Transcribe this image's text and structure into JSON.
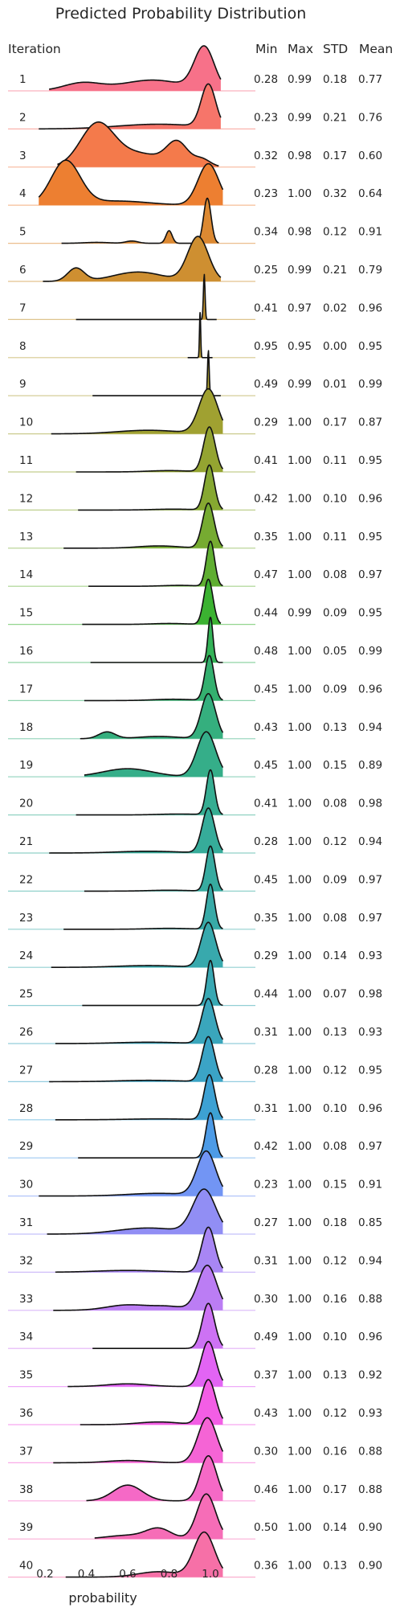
{
  "chart_data": {
    "type": "area",
    "title": "Predicted Probability Distribution",
    "xlabel": "probability",
    "xticks": [
      "0.2",
      "0.4",
      "0.6",
      "0.8",
      "1.0"
    ],
    "xlim": [
      0.05,
      1.25
    ],
    "columns": {
      "iteration": "Iteration",
      "min": "Min",
      "max": "Max",
      "std": "STD",
      "mean": "Mean"
    },
    "rows": [
      {
        "iteration": "1",
        "min": "0.28",
        "max": "0.99",
        "std": "0.18",
        "mean": "0.77",
        "color": "#f77189"
      },
      {
        "iteration": "2",
        "min": "0.23",
        "max": "0.99",
        "std": "0.21",
        "mean": "0.76",
        "color": "#f6756a"
      },
      {
        "iteration": "3",
        "min": "0.32",
        "max": "0.98",
        "std": "0.17",
        "mean": "0.60",
        "color": "#f47a4b"
      },
      {
        "iteration": "4",
        "min": "0.23",
        "max": "1.00",
        "std": "0.32",
        "mean": "0.64",
        "color": "#ed7f31"
      },
      {
        "iteration": "5",
        "min": "0.34",
        "max": "0.98",
        "std": "0.12",
        "mean": "0.91",
        "color": "#dc8932"
      },
      {
        "iteration": "6",
        "min": "0.25",
        "max": "0.99",
        "std": "0.21",
        "mean": "0.79",
        "color": "#ce8f31"
      },
      {
        "iteration": "7",
        "min": "0.41",
        "max": "0.97",
        "std": "0.02",
        "mean": "0.96",
        "color": "#c29431"
      },
      {
        "iteration": "8",
        "min": "0.95",
        "max": "0.95",
        "std": "0.00",
        "mean": "0.95",
        "color": "#b59a31"
      },
      {
        "iteration": "9",
        "min": "0.49",
        "max": "0.99",
        "std": "0.01",
        "mean": "0.99",
        "color": "#aa9d31"
      },
      {
        "iteration": "10",
        "min": "0.29",
        "max": "1.00",
        "std": "0.17",
        "mean": "0.87",
        "color": "#a0a131"
      },
      {
        "iteration": "11",
        "min": "0.41",
        "max": "1.00",
        "std": "0.11",
        "mean": "0.95",
        "color": "#94a431"
      },
      {
        "iteration": "12",
        "min": "0.42",
        "max": "1.00",
        "std": "0.10",
        "mean": "0.96",
        "color": "#86a831"
      },
      {
        "iteration": "13",
        "min": "0.35",
        "max": "1.00",
        "std": "0.11",
        "mean": "0.95",
        "color": "#76ab31"
      },
      {
        "iteration": "14",
        "min": "0.47",
        "max": "1.00",
        "std": "0.08",
        "mean": "0.97",
        "color": "#5fae31"
      },
      {
        "iteration": "15",
        "min": "0.44",
        "max": "0.99",
        "std": "0.09",
        "mean": "0.95",
        "color": "#3bb231"
      },
      {
        "iteration": "16",
        "min": "0.48",
        "max": "1.00",
        "std": "0.05",
        "mean": "0.99",
        "color": "#33b257"
      },
      {
        "iteration": "17",
        "min": "0.45",
        "max": "1.00",
        "std": "0.09",
        "mean": "0.96",
        "color": "#34b06f"
      },
      {
        "iteration": "18",
        "min": "0.43",
        "max": "1.00",
        "std": "0.13",
        "mean": "0.94",
        "color": "#35af7e"
      },
      {
        "iteration": "19",
        "min": "0.45",
        "max": "1.00",
        "std": "0.15",
        "mean": "0.89",
        "color": "#35ae89"
      },
      {
        "iteration": "20",
        "min": "0.41",
        "max": "1.00",
        "std": "0.08",
        "mean": "0.98",
        "color": "#36ad92"
      },
      {
        "iteration": "21",
        "min": "0.28",
        "max": "1.00",
        "std": "0.12",
        "mean": "0.94",
        "color": "#36ac9a"
      },
      {
        "iteration": "22",
        "min": "0.45",
        "max": "1.00",
        "std": "0.09",
        "mean": "0.97",
        "color": "#37aba0"
      },
      {
        "iteration": "23",
        "min": "0.35",
        "max": "1.00",
        "std": "0.08",
        "mean": "0.97",
        "color": "#38aaa7"
      },
      {
        "iteration": "24",
        "min": "0.29",
        "max": "1.00",
        "std": "0.14",
        "mean": "0.93",
        "color": "#38a9ad"
      },
      {
        "iteration": "25",
        "min": "0.44",
        "max": "1.00",
        "std": "0.07",
        "mean": "0.98",
        "color": "#39a8b3"
      },
      {
        "iteration": "26",
        "min": "0.31",
        "max": "1.00",
        "std": "0.13",
        "mean": "0.93",
        "color": "#3aa6bc"
      },
      {
        "iteration": "27",
        "min": "0.28",
        "max": "1.00",
        "std": "0.12",
        "mean": "0.95",
        "color": "#3ba4c6"
      },
      {
        "iteration": "28",
        "min": "0.31",
        "max": "1.00",
        "std": "0.10",
        "mean": "0.96",
        "color": "#3da1d3"
      },
      {
        "iteration": "29",
        "min": "0.42",
        "max": "1.00",
        "std": "0.08",
        "mean": "0.97",
        "color": "#4d9be6"
      },
      {
        "iteration": "30",
        "min": "0.23",
        "max": "1.00",
        "std": "0.15",
        "mean": "0.91",
        "color": "#7295f4"
      },
      {
        "iteration": "31",
        "min": "0.27",
        "max": "1.00",
        "std": "0.18",
        "mean": "0.85",
        "color": "#918ef4"
      },
      {
        "iteration": "32",
        "min": "0.31",
        "max": "1.00",
        "std": "0.12",
        "mean": "0.94",
        "color": "#a886f4"
      },
      {
        "iteration": "33",
        "min": "0.30",
        "max": "1.00",
        "std": "0.16",
        "mean": "0.88",
        "color": "#bb7df4"
      },
      {
        "iteration": "34",
        "min": "0.49",
        "max": "1.00",
        "std": "0.10",
        "mean": "0.96",
        "color": "#cd72f4"
      },
      {
        "iteration": "35",
        "min": "0.37",
        "max": "1.00",
        "std": "0.13",
        "mean": "0.92",
        "color": "#e264f4"
      },
      {
        "iteration": "36",
        "min": "0.43",
        "max": "1.00",
        "std": "0.12",
        "mean": "0.93",
        "color": "#f35ee5"
      },
      {
        "iteration": "37",
        "min": "0.30",
        "max": "1.00",
        "std": "0.16",
        "mean": "0.88",
        "color": "#f564d5"
      },
      {
        "iteration": "38",
        "min": "0.46",
        "max": "1.00",
        "std": "0.17",
        "mean": "0.88",
        "color": "#f569c6"
      },
      {
        "iteration": "39",
        "min": "0.50",
        "max": "1.00",
        "std": "0.14",
        "mean": "0.90",
        "color": "#f66db7"
      },
      {
        "iteration": "40",
        "min": "0.36",
        "max": "1.00",
        "std": "0.13",
        "mean": "0.90",
        "color": "#f670a7"
      }
    ],
    "peaks": [
      [
        [
          0.97,
          0.048,
          0.55
        ],
        [
          0.72,
          0.15,
          0.14
        ],
        [
          0.38,
          0.09,
          0.1
        ]
      ],
      [
        [
          0.99,
          0.035,
          0.9
        ],
        [
          0.75,
          0.2,
          0.1
        ]
      ],
      [
        [
          0.45,
          0.08,
          1.0
        ],
        [
          0.64,
          0.14,
          0.35
        ],
        [
          0.84,
          0.05,
          0.55
        ],
        [
          0.96,
          0.04,
          0.18
        ]
      ],
      [
        [
          0.3,
          0.07,
          0.85
        ],
        [
          0.99,
          0.05,
          0.8
        ],
        [
          0.55,
          0.15,
          0.08
        ]
      ],
      [
        [
          0.985,
          0.018,
          1.0
        ],
        [
          0.8,
          0.015,
          0.28
        ],
        [
          0.62,
          0.03,
          0.05
        ],
        [
          0.45,
          0.06,
          0.02
        ]
      ],
      [
        [
          0.94,
          0.05,
          0.95
        ],
        [
          0.35,
          0.04,
          0.28
        ],
        [
          0.65,
          0.12,
          0.2
        ]
      ],
      [
        [
          0.97,
          0.004,
          1.0
        ]
      ],
      [
        [
          0.95,
          0.003,
          1.0
        ]
      ],
      [
        [
          0.99,
          0.004,
          1.0
        ]
      ],
      [
        [
          0.99,
          0.045,
          1.0
        ],
        [
          0.7,
          0.15,
          0.08
        ]
      ],
      [
        [
          0.995,
          0.028,
          1.0
        ],
        [
          0.8,
          0.1,
          0.03
        ]
      ],
      [
        [
          0.995,
          0.024,
          1.0
        ],
        [
          0.82,
          0.1,
          0.02
        ]
      ],
      [
        [
          0.99,
          0.028,
          1.0
        ],
        [
          0.75,
          0.1,
          0.05
        ]
      ],
      [
        [
          1.0,
          0.02,
          1.0
        ],
        [
          0.85,
          0.08,
          0.02
        ]
      ],
      [
        [
          0.99,
          0.022,
          1.0
        ],
        [
          0.8,
          0.08,
          0.02
        ]
      ],
      [
        [
          1.0,
          0.012,
          1.0
        ]
      ],
      [
        [
          0.995,
          0.022,
          1.0
        ],
        [
          0.82,
          0.1,
          0.03
        ]
      ],
      [
        [
          0.99,
          0.035,
          1.0
        ],
        [
          0.5,
          0.04,
          0.15
        ],
        [
          0.75,
          0.1,
          0.05
        ]
      ],
      [
        [
          0.98,
          0.045,
          1.0
        ],
        [
          0.6,
          0.12,
          0.18
        ]
      ],
      [
        [
          1.0,
          0.02,
          1.0
        ],
        [
          0.85,
          0.1,
          0.02
        ]
      ],
      [
        [
          0.99,
          0.03,
          1.0
        ],
        [
          0.7,
          0.15,
          0.04
        ]
      ],
      [
        [
          1.0,
          0.022,
          1.0
        ],
        [
          0.8,
          0.1,
          0.02
        ]
      ],
      [
        [
          1.0,
          0.02,
          1.0
        ],
        [
          0.8,
          0.1,
          0.02
        ]
      ],
      [
        [
          0.99,
          0.035,
          1.0
        ],
        [
          0.7,
          0.15,
          0.04
        ]
      ],
      [
        [
          1.0,
          0.018,
          1.0
        ]
      ],
      [
        [
          0.99,
          0.032,
          1.0
        ],
        [
          0.7,
          0.15,
          0.03
        ]
      ],
      [
        [
          0.99,
          0.03,
          1.0
        ],
        [
          0.7,
          0.15,
          0.03
        ]
      ],
      [
        [
          0.995,
          0.026,
          1.0
        ],
        [
          0.75,
          0.15,
          0.02
        ]
      ],
      [
        [
          1.0,
          0.022,
          1.0
        ]
      ],
      [
        [
          0.98,
          0.045,
          1.0
        ],
        [
          0.75,
          0.15,
          0.06
        ]
      ],
      [
        [
          0.97,
          0.055,
          1.0
        ],
        [
          0.7,
          0.15,
          0.14
        ]
      ],
      [
        [
          0.99,
          0.032,
          1.0
        ],
        [
          0.6,
          0.15,
          0.04
        ]
      ],
      [
        [
          0.985,
          0.045,
          1.0
        ],
        [
          0.6,
          0.1,
          0.12
        ],
        [
          0.8,
          0.08,
          0.08
        ]
      ],
      [
        [
          0.99,
          0.03,
          1.0
        ]
      ],
      [
        [
          0.99,
          0.035,
          1.0
        ],
        [
          0.6,
          0.1,
          0.06
        ]
      ],
      [
        [
          0.99,
          0.035,
          1.0
        ],
        [
          0.75,
          0.1,
          0.06
        ]
      ],
      [
        [
          0.985,
          0.045,
          1.0
        ],
        [
          0.6,
          0.1,
          0.05
        ]
      ],
      [
        [
          0.99,
          0.04,
          1.0
        ],
        [
          0.6,
          0.07,
          0.35
        ]
      ],
      [
        [
          0.98,
          0.045,
          1.0
        ],
        [
          0.75,
          0.06,
          0.22
        ],
        [
          0.6,
          0.1,
          0.08
        ]
      ],
      [
        [
          0.97,
          0.05,
          1.0
        ],
        [
          0.75,
          0.1,
          0.12
        ]
      ]
    ]
  }
}
